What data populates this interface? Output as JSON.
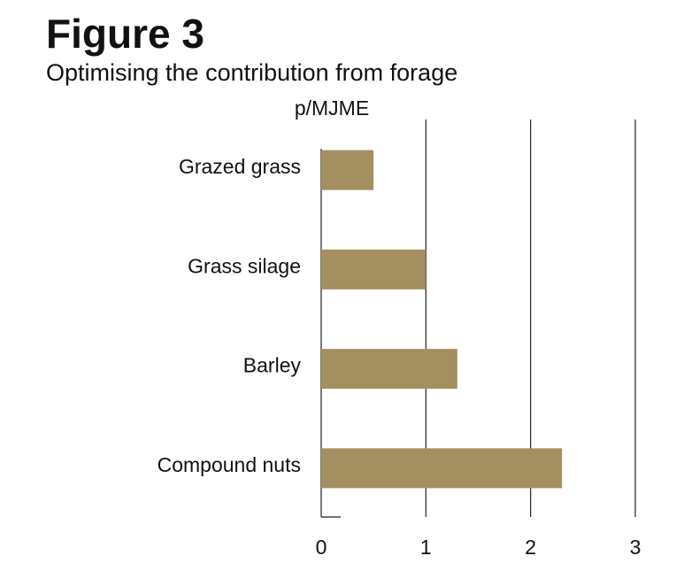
{
  "chart_data": {
    "type": "bar",
    "orientation": "horizontal",
    "title": "Figure 3",
    "subtitle": "Optimising the contribution from forage",
    "xlabel": "p/MJME",
    "categories": [
      "Grazed grass",
      "Grass silage",
      "Barley",
      "Compound nuts"
    ],
    "values": [
      0.5,
      1.0,
      1.3,
      2.3
    ],
    "color": "#a38f60",
    "xlim": [
      0,
      3
    ],
    "xticks": [
      0,
      1,
      2,
      3
    ],
    "grid": true
  }
}
